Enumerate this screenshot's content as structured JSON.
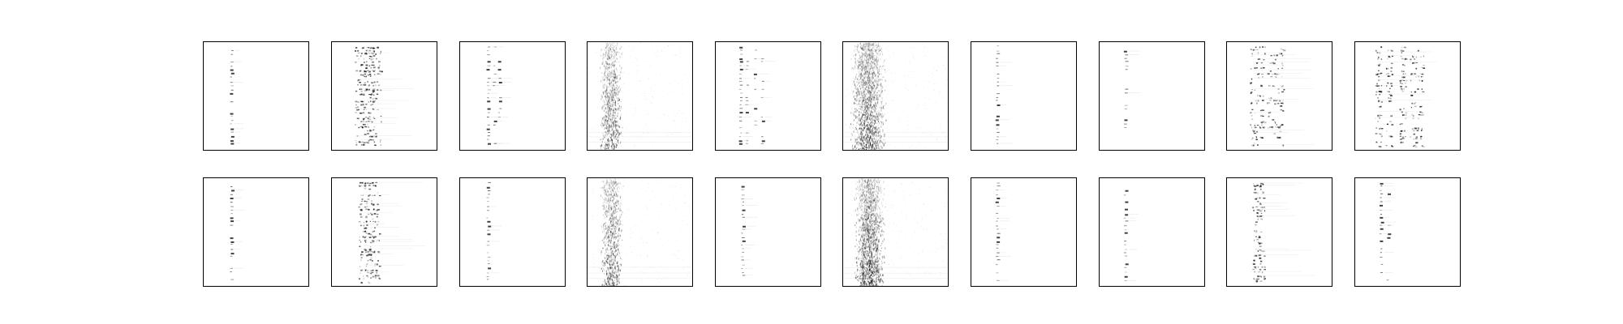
{
  "figure": {
    "rows": 2,
    "cols": 10,
    "background": "#ffffff",
    "frame_color": "#000000",
    "ink_color": "#000000"
  },
  "panels": [
    {
      "row": 0,
      "col": 0,
      "style": "sparse-column",
      "columns": [
        0.27
      ],
      "spread": 0.02,
      "density": 0.5
    },
    {
      "row": 0,
      "col": 1,
      "style": "dense-cluster",
      "columns": [
        0.26,
        0.32,
        0.36,
        0.42
      ],
      "spread": 0.05,
      "density": 0.9
    },
    {
      "row": 0,
      "col": 2,
      "style": "sparse-column",
      "columns": [
        0.27,
        0.33,
        0.38
      ],
      "spread": 0.03,
      "density": 0.55
    },
    {
      "row": 0,
      "col": 3,
      "style": "noisy-band",
      "columns": [
        0.22
      ],
      "spread": 0.08,
      "density": 1.0
    },
    {
      "row": 0,
      "col": 4,
      "style": "sparse-column",
      "columns": [
        0.24,
        0.3,
        0.38,
        0.45
      ],
      "spread": 0.03,
      "density": 0.6
    },
    {
      "row": 0,
      "col": 5,
      "style": "noisy-band",
      "columns": [
        0.2,
        0.28
      ],
      "spread": 0.1,
      "density": 1.0
    },
    {
      "row": 0,
      "col": 6,
      "style": "sparse-column",
      "columns": [
        0.25
      ],
      "spread": 0.02,
      "density": 0.5
    },
    {
      "row": 0,
      "col": 7,
      "style": "sparse-column",
      "columns": [
        0.25
      ],
      "spread": 0.02,
      "density": 0.35
    },
    {
      "row": 0,
      "col": 8,
      "style": "dense-cluster",
      "columns": [
        0.25,
        0.32,
        0.42,
        0.5
      ],
      "spread": 0.04,
      "density": 0.7
    },
    {
      "row": 0,
      "col": 9,
      "style": "dense-cluster",
      "columns": [
        0.22,
        0.32,
        0.45,
        0.55,
        0.62
      ],
      "spread": 0.03,
      "density": 0.7
    },
    {
      "row": 1,
      "col": 0,
      "style": "sparse-column",
      "columns": [
        0.27
      ],
      "spread": 0.02,
      "density": 0.5
    },
    {
      "row": 1,
      "col": 1,
      "style": "dense-cluster",
      "columns": [
        0.3,
        0.35,
        0.4
      ],
      "spread": 0.05,
      "density": 0.9
    },
    {
      "row": 1,
      "col": 2,
      "style": "sparse-column",
      "columns": [
        0.27
      ],
      "spread": 0.02,
      "density": 0.55
    },
    {
      "row": 1,
      "col": 3,
      "style": "noisy-band",
      "columns": [
        0.23
      ],
      "spread": 0.08,
      "density": 1.0
    },
    {
      "row": 1,
      "col": 4,
      "style": "sparse-column",
      "columns": [
        0.26
      ],
      "spread": 0.02,
      "density": 0.55
    },
    {
      "row": 1,
      "col": 5,
      "style": "noisy-band",
      "columns": [
        0.22,
        0.28
      ],
      "spread": 0.09,
      "density": 1.0
    },
    {
      "row": 1,
      "col": 6,
      "style": "sparse-column",
      "columns": [
        0.25
      ],
      "spread": 0.02,
      "density": 0.55
    },
    {
      "row": 1,
      "col": 7,
      "style": "sparse-column",
      "columns": [
        0.25
      ],
      "spread": 0.02,
      "density": 0.35
    },
    {
      "row": 1,
      "col": 8,
      "style": "dense-cluster",
      "columns": [
        0.28,
        0.32
      ],
      "spread": 0.04,
      "density": 0.7
    },
    {
      "row": 1,
      "col": 9,
      "style": "sparse-column",
      "columns": [
        0.25,
        0.32
      ],
      "spread": 0.02,
      "density": 0.45
    }
  ]
}
